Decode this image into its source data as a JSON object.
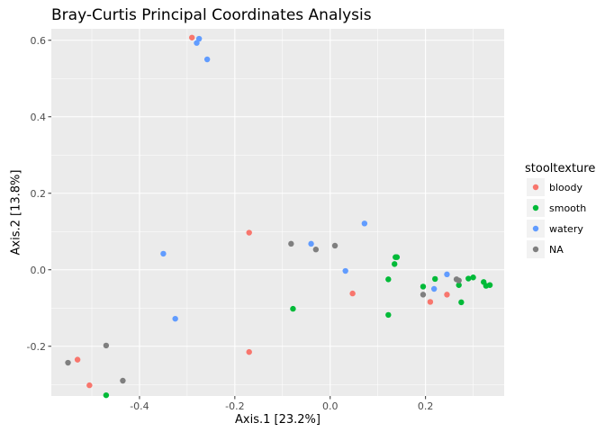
{
  "chart_data": {
    "type": "scatter",
    "title": "Bray-Curtis Principal Coordinates Analysis",
    "xlabel": "Axis.1   [23.2%]",
    "ylabel": "Axis.2   [13.8%]",
    "xlim": [
      -0.585,
      0.365
    ],
    "ylim": [
      -0.33,
      0.63
    ],
    "x_ticks": [
      -0.4,
      -0.2,
      0.0,
      0.2
    ],
    "x_tick_labels": [
      "-0.4",
      "-0.2",
      "0.0",
      "0.2"
    ],
    "y_ticks": [
      -0.2,
      0.0,
      0.2,
      0.4,
      0.6
    ],
    "y_tick_labels": [
      "-0.2",
      "0.0",
      "0.2",
      "0.4",
      "0.6"
    ],
    "grid": true,
    "legend": {
      "title": "stooltexture",
      "placement": "right"
    },
    "series": [
      {
        "name": "bloody",
        "color": "#F8766D",
        "points": [
          [
            -0.29,
            0.607
          ],
          [
            -0.17,
            0.097
          ],
          [
            -0.17,
            -0.215
          ],
          [
            -0.53,
            -0.235
          ],
          [
            -0.505,
            -0.302
          ],
          [
            0.047,
            -0.062
          ],
          [
            0.21,
            -0.084
          ],
          [
            0.245,
            -0.065
          ]
        ]
      },
      {
        "name": "smooth",
        "color": "#00BA38",
        "points": [
          [
            -0.078,
            -0.102
          ],
          [
            -0.47,
            -0.328
          ],
          [
            0.122,
            -0.025
          ],
          [
            0.135,
            0.015
          ],
          [
            0.137,
            0.033
          ],
          [
            0.14,
            0.033
          ],
          [
            0.122,
            -0.118
          ],
          [
            0.195,
            -0.044
          ],
          [
            0.22,
            -0.024
          ],
          [
            0.27,
            -0.04
          ],
          [
            0.275,
            -0.085
          ],
          [
            0.29,
            -0.023
          ],
          [
            0.3,
            -0.02
          ],
          [
            0.322,
            -0.032
          ],
          [
            0.327,
            -0.042
          ],
          [
            0.335,
            -0.04
          ]
        ]
      },
      {
        "name": "watery",
        "color": "#619CFF",
        "points": [
          [
            -0.275,
            0.604
          ],
          [
            -0.28,
            0.593
          ],
          [
            -0.258,
            0.55
          ],
          [
            -0.35,
            0.042
          ],
          [
            -0.325,
            -0.128
          ],
          [
            -0.04,
            0.068
          ],
          [
            0.032,
            -0.003
          ],
          [
            0.072,
            0.121
          ],
          [
            0.218,
            -0.05
          ],
          [
            0.245,
            -0.012
          ]
        ]
      },
      {
        "name": "NA",
        "color": "#7F7F7F",
        "points": [
          [
            -0.082,
            0.068
          ],
          [
            -0.03,
            0.053
          ],
          [
            0.01,
            0.063
          ],
          [
            -0.47,
            -0.198
          ],
          [
            -0.435,
            -0.29
          ],
          [
            -0.55,
            -0.243
          ],
          [
            0.195,
            -0.065
          ],
          [
            0.265,
            -0.025
          ],
          [
            0.27,
            -0.028
          ]
        ]
      }
    ]
  }
}
